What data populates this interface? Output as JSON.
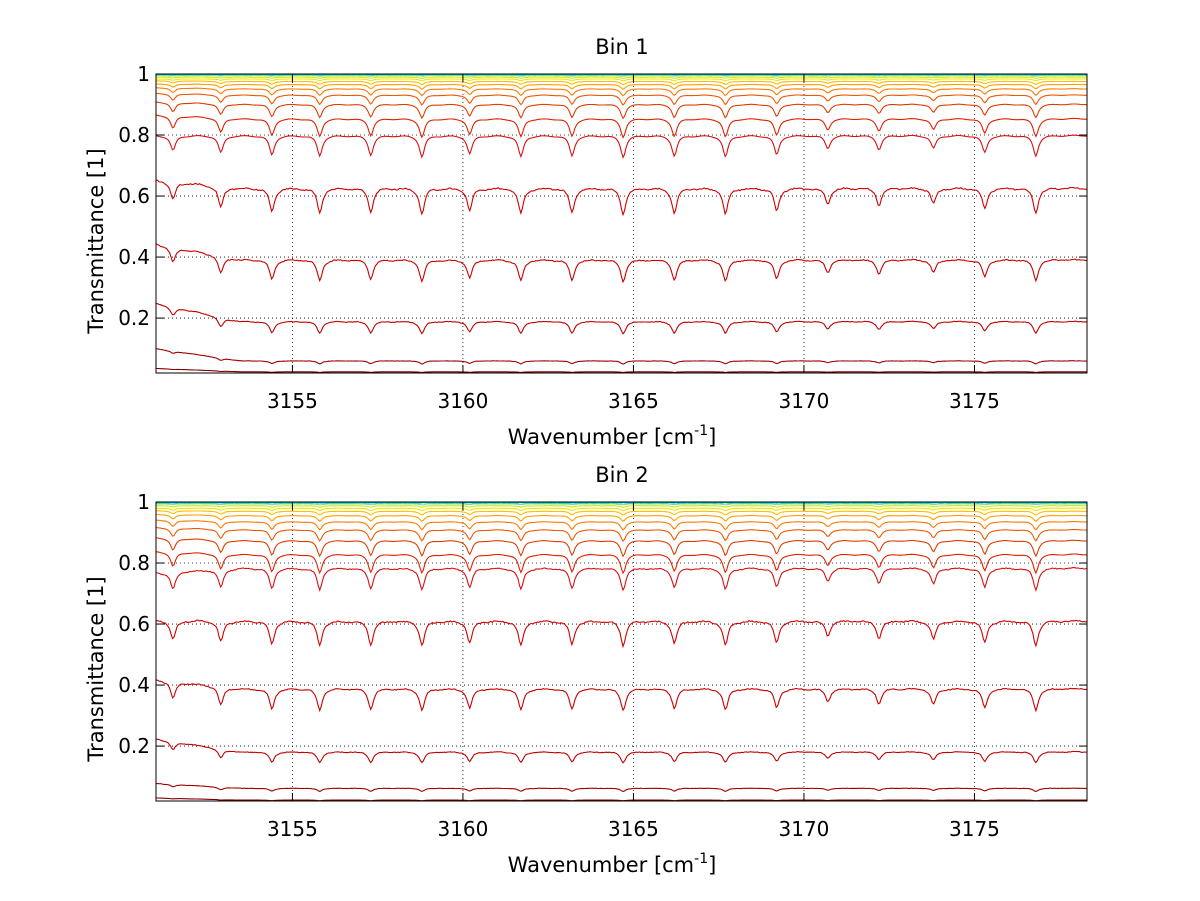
{
  "chart_data": [
    {
      "type": "line",
      "title": "Bin 1",
      "xlabel": "Wavenumber [cm",
      "xlabel_superscript": "-1",
      "xlabel_suffix": "]",
      "ylabel": "Transmittance [1]",
      "xlim": [
        3151,
        3178.3
      ],
      "ylim": [
        0.02,
        1.0
      ],
      "xticks": [
        3155,
        3160,
        3165,
        3170,
        3175
      ],
      "xtick_labels": [
        "3155",
        "3160",
        "3165",
        "3170",
        "3175"
      ],
      "yticks": [
        0.2,
        0.4,
        0.6,
        0.8,
        1
      ],
      "ytick_labels": [
        "0.2",
        "0.4",
        "0.6",
        "0.8",
        "1"
      ],
      "grid": "dotted",
      "line_centers": [
        3151.5,
        3152.9,
        3154.4,
        3155.8,
        3157.3,
        3158.8,
        3160.2,
        3161.7,
        3163.2,
        3164.7,
        3166.2,
        3167.7,
        3169.2,
        3170.7,
        3172.2,
        3173.8,
        3175.3,
        3176.8
      ],
      "line_depths": [
        0.7,
        0.8,
        0.9,
        0.95,
        0.9,
        1.0,
        0.85,
        1.0,
        0.95,
        1.0,
        0.95,
        1.0,
        0.9,
        0.6,
        0.65,
        0.6,
        0.8,
        0.95
      ],
      "series": [
        {
          "level": 0.999,
          "start": 0.999,
          "depth": 0.0,
          "color": "#1f5fd0",
          "noise": 0.003
        },
        {
          "level": 0.997,
          "start": 0.997,
          "depth": 0.0,
          "color": "#00c0d8",
          "noise": 0.002
        },
        {
          "level": 0.995,
          "start": 0.995,
          "depth": 0.002,
          "color": "#6fe0a0",
          "noise": 0.001
        },
        {
          "level": 0.99,
          "start": 0.99,
          "depth": 0.004,
          "color": "#c8f000",
          "noise": 0.001
        },
        {
          "level": 0.984,
          "start": 0.984,
          "depth": 0.006,
          "color": "#ffe000",
          "noise": 0.0
        },
        {
          "level": 0.976,
          "start": 0.978,
          "depth": 0.01,
          "color": "#ffbf00",
          "noise": 0.0
        },
        {
          "level": 0.966,
          "start": 0.968,
          "depth": 0.015,
          "color": "#ff9f00",
          "noise": 0.0
        },
        {
          "level": 0.952,
          "start": 0.956,
          "depth": 0.022,
          "color": "#ff7a00",
          "noise": 0.0
        },
        {
          "level": 0.932,
          "start": 0.938,
          "depth": 0.032,
          "color": "#f05800",
          "noise": 0.0
        },
        {
          "level": 0.902,
          "start": 0.91,
          "depth": 0.045,
          "color": "#e03c00",
          "noise": 0.0
        },
        {
          "level": 0.855,
          "start": 0.868,
          "depth": 0.06,
          "color": "#e02000",
          "noise": 0.0
        },
        {
          "level": 0.8,
          "start": 0.8,
          "depth": 0.07,
          "color": "#d81010",
          "noise": 0.0
        },
        {
          "level": 0.628,
          "start": 0.655,
          "depth": 0.085,
          "color": "#d00000",
          "noise": 0.004
        },
        {
          "level": 0.393,
          "start": 0.445,
          "depth": 0.07,
          "color": "#c80000",
          "noise": 0.003
        },
        {
          "level": 0.19,
          "start": 0.25,
          "depth": 0.04,
          "color": "#c00000",
          "noise": 0.002
        },
        {
          "level": 0.06,
          "start": 0.1,
          "depth": 0.01,
          "color": "#a00000",
          "noise": 0.001
        },
        {
          "level": 0.024,
          "start": 0.035,
          "depth": 0.002,
          "color": "#800000",
          "noise": 0.0
        }
      ]
    },
    {
      "type": "line",
      "title": "Bin 2",
      "xlabel": "Wavenumber [cm",
      "xlabel_superscript": "-1",
      "xlabel_suffix": "]",
      "ylabel": "Transmittance [1]",
      "xlim": [
        3151,
        3178.3
      ],
      "ylim": [
        0.02,
        1.0
      ],
      "xticks": [
        3155,
        3160,
        3165,
        3170,
        3175
      ],
      "xtick_labels": [
        "3155",
        "3160",
        "3165",
        "3170",
        "3175"
      ],
      "yticks": [
        0.2,
        0.4,
        0.6,
        0.8,
        1
      ],
      "ytick_labels": [
        "0.2",
        "0.4",
        "0.6",
        "0.8",
        "1"
      ],
      "grid": "dotted",
      "line_centers": [
        3151.5,
        3152.9,
        3154.4,
        3155.8,
        3157.3,
        3158.8,
        3160.2,
        3161.7,
        3163.2,
        3164.7,
        3166.2,
        3167.7,
        3169.2,
        3170.7,
        3172.2,
        3173.8,
        3175.3,
        3176.8
      ],
      "line_depths": [
        0.8,
        0.85,
        0.95,
        1.0,
        0.95,
        1.0,
        0.9,
        1.0,
        0.95,
        1.0,
        0.9,
        1.0,
        0.9,
        0.6,
        0.7,
        0.75,
        0.9,
        1.0
      ],
      "series": [
        {
          "level": 0.999,
          "start": 0.999,
          "depth": 0.0,
          "color": "#1f5fd0",
          "noise": 0.003
        },
        {
          "level": 0.997,
          "start": 0.997,
          "depth": 0.0,
          "color": "#00c0d8",
          "noise": 0.002
        },
        {
          "level": 0.994,
          "start": 0.994,
          "depth": 0.003,
          "color": "#6fe0a0",
          "noise": 0.001
        },
        {
          "level": 0.988,
          "start": 0.988,
          "depth": 0.005,
          "color": "#c8f000",
          "noise": 0.001
        },
        {
          "level": 0.98,
          "start": 0.98,
          "depth": 0.008,
          "color": "#ffe000",
          "noise": 0.0
        },
        {
          "level": 0.97,
          "start": 0.972,
          "depth": 0.012,
          "color": "#ffbf00",
          "noise": 0.0
        },
        {
          "level": 0.956,
          "start": 0.96,
          "depth": 0.018,
          "color": "#ff9f00",
          "noise": 0.0
        },
        {
          "level": 0.936,
          "start": 0.942,
          "depth": 0.026,
          "color": "#ff7a00",
          "noise": 0.0
        },
        {
          "level": 0.91,
          "start": 0.918,
          "depth": 0.036,
          "color": "#f05800",
          "noise": 0.0
        },
        {
          "level": 0.875,
          "start": 0.885,
          "depth": 0.05,
          "color": "#e03c00",
          "noise": 0.0
        },
        {
          "level": 0.83,
          "start": 0.84,
          "depth": 0.06,
          "color": "#e02000",
          "noise": 0.0
        },
        {
          "level": 0.785,
          "start": 0.77,
          "depth": 0.07,
          "color": "#d81010",
          "noise": 0.003
        },
        {
          "level": 0.612,
          "start": 0.615,
          "depth": 0.08,
          "color": "#d00000",
          "noise": 0.004
        },
        {
          "level": 0.39,
          "start": 0.42,
          "depth": 0.07,
          "color": "#c80000",
          "noise": 0.003
        },
        {
          "level": 0.182,
          "start": 0.225,
          "depth": 0.035,
          "color": "#c00000",
          "noise": 0.002
        },
        {
          "level": 0.062,
          "start": 0.078,
          "depth": 0.01,
          "color": "#a00000",
          "noise": 0.001
        },
        {
          "level": 0.023,
          "start": 0.03,
          "depth": 0.002,
          "color": "#800000",
          "noise": 0.0
        }
      ]
    }
  ]
}
